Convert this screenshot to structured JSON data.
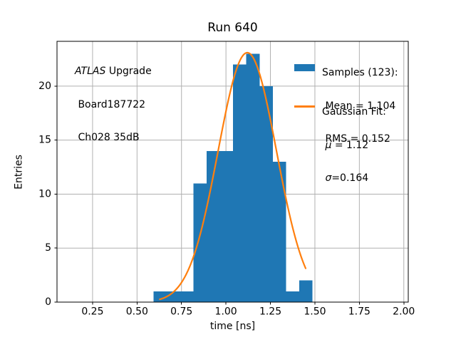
{
  "title": "Run 640",
  "annotation": {
    "brand": "ATLAS",
    "line1_rest": " Upgrade",
    "line2": " Board187722",
    "line3": " Ch028 35dB"
  },
  "legend": {
    "samples": {
      "title": "Samples (123):",
      "mean_line": " Mean = 1.104",
      "rms_line": " RMS = 0.152"
    },
    "fit": {
      "title": "Gaussian Fit:",
      "mu_pre": " ",
      "mu_symbol": "μ",
      "mu_rest": " = 1.12",
      "sigma_pre": " ",
      "sigma_symbol": "σ",
      "sigma_rest": "=0.164"
    }
  },
  "chart_data": {
    "type": "bar",
    "subtype": "histogram-with-gaussian-fit",
    "title": "Run 640",
    "xlabel": "time [ns]",
    "ylabel": "Entries",
    "xlim": [
      0.05,
      2.025
    ],
    "ylim": [
      0,
      24.15
    ],
    "grid": true,
    "grid_color": "#b0b0b0",
    "spine_color": "#000000",
    "bar_color": "#1f77b4",
    "curve_color": "#ff7f0e",
    "legend_position": "upper-right, frameless",
    "xticks": [
      0.25,
      0.5,
      0.75,
      1.0,
      1.25,
      1.5,
      1.75,
      2.0
    ],
    "xtick_labels": [
      "0.25",
      "0.50",
      "0.75",
      "1.00",
      "1.25",
      "1.50",
      "1.75",
      "2.00"
    ],
    "yticks": [
      0,
      5,
      10,
      15,
      20
    ],
    "ytick_labels": [
      "0",
      "5",
      "10",
      "15",
      "20"
    ],
    "bin_edges": [
      0.593,
      0.6675,
      0.742,
      0.8165,
      0.891,
      0.9655,
      1.04,
      1.1145,
      1.189,
      1.2635,
      1.338,
      1.4125,
      1.487
    ],
    "counts": [
      1,
      1,
      1,
      11,
      14,
      14,
      22,
      23,
      20,
      13,
      1,
      2
    ],
    "samples": {
      "n": 123,
      "mean": 1.104,
      "rms": 0.152
    },
    "gaussian_fit": {
      "amplitude": 23.1,
      "mu": 1.12,
      "sigma": 0.164,
      "x_range": [
        0.628,
        1.448
      ]
    }
  }
}
